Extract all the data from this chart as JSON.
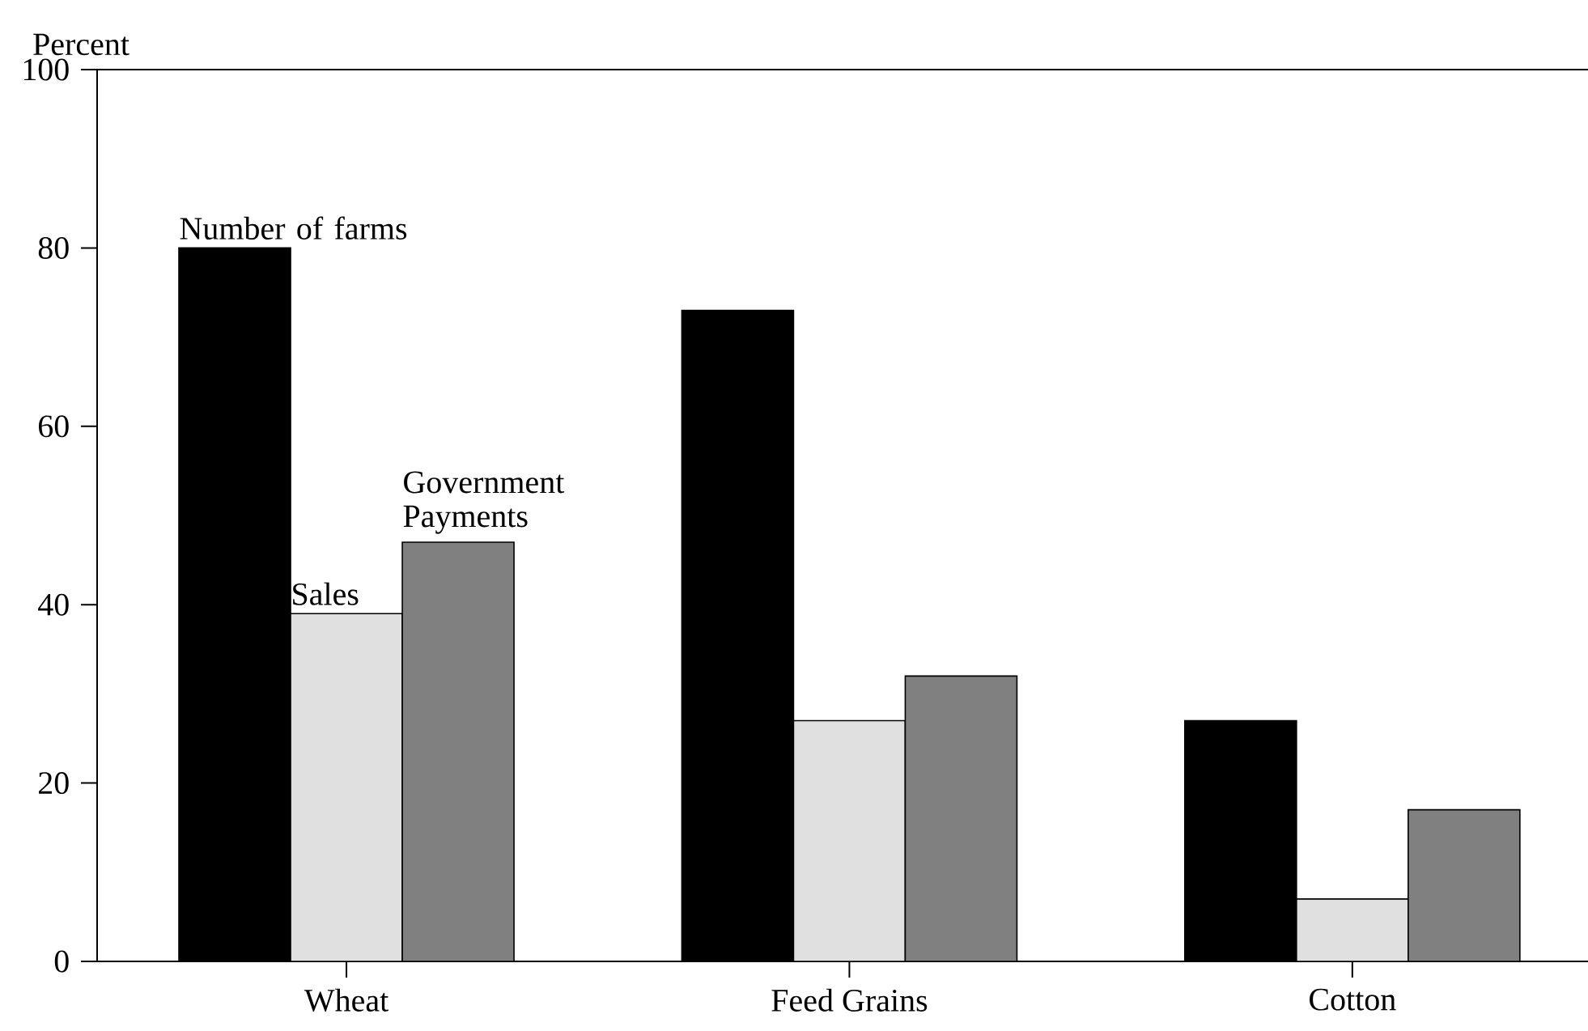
{
  "chart_data": {
    "type": "bar",
    "ylabel": "Percent",
    "categories": [
      "Wheat",
      "Feed Grains",
      "Cotton"
    ],
    "series": [
      {
        "name": "Number of farms",
        "color": "#000000",
        "values": [
          80,
          73,
          27
        ]
      },
      {
        "name": "Sales",
        "color": "#e0e0e0",
        "values": [
          39,
          27,
          7
        ]
      },
      {
        "name": "Government Payments",
        "color": "#808080",
        "values": [
          47,
          32,
          17
        ]
      }
    ],
    "ylim": [
      0,
      100
    ],
    "yticks": [
      0,
      20,
      40,
      60,
      80,
      100
    ],
    "legend": false
  }
}
